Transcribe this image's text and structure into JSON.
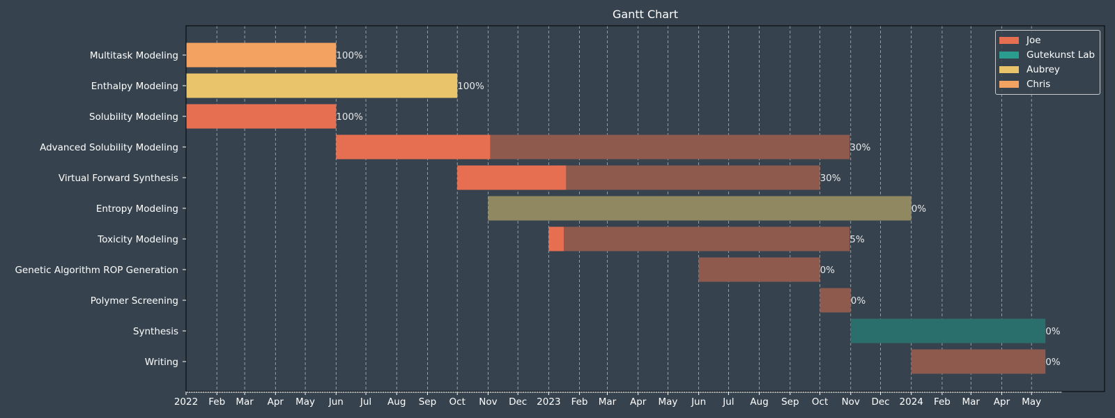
{
  "chart_data": {
    "type": "gantt",
    "title": "Gantt Chart",
    "x_start": "2022-01-01",
    "x_end": "2024-05-31",
    "grid": "vertical dashed",
    "legend_position": "top-right",
    "x_tick_labels": [
      "2022",
      "Feb",
      "Mar",
      "Apr",
      "May",
      "Jun",
      "Jul",
      "Aug",
      "Sep",
      "Oct",
      "Nov",
      "Dec",
      "2023",
      "Feb",
      "Mar",
      "Apr",
      "May",
      "Jun",
      "Jul",
      "Aug",
      "Sep",
      "Oct",
      "Nov",
      "Dec",
      "2024",
      "Feb",
      "Mar",
      "Apr",
      "May"
    ],
    "legend": [
      {
        "name": "Joe",
        "color": "#e76f51"
      },
      {
        "name": "Gutekunst Lab",
        "color": "#2a9d8f"
      },
      {
        "name": "Aubrey",
        "color": "#e9c46a"
      },
      {
        "name": "Chris",
        "color": "#f4a261"
      }
    ],
    "tasks": [
      {
        "name": "Multitask Modeling",
        "owner": "Chris",
        "start": "2022-01-01",
        "end": "2022-06-01",
        "completion": 1.0,
        "label": "100%"
      },
      {
        "name": "Enthalpy Modeling",
        "owner": "Aubrey",
        "start": "2022-01-01",
        "end": "2022-10-01",
        "completion": 1.0,
        "label": "100%"
      },
      {
        "name": "Solubility Modeling",
        "owner": "Joe",
        "start": "2022-01-01",
        "end": "2022-06-01",
        "completion": 1.0,
        "label": "100%"
      },
      {
        "name": "Advanced Solubility Modeling",
        "owner": "Joe",
        "start": "2022-06-01",
        "end": "2023-10-31",
        "completion": 0.3,
        "label": "30%"
      },
      {
        "name": "Virtual Forward Synthesis",
        "owner": "Joe",
        "start": "2022-10-01",
        "end": "2023-10-01",
        "completion": 0.3,
        "label": "30%"
      },
      {
        "name": "Entropy Modeling",
        "owner": "Aubrey",
        "start": "2022-11-01",
        "end": "2024-01-01",
        "completion": 0.0,
        "label": "0%"
      },
      {
        "name": "Toxicity Modeling",
        "owner": "Joe",
        "start": "2023-01-01",
        "end": "2023-10-31",
        "completion": 0.05,
        "label": "5%"
      },
      {
        "name": "Genetic Algorithm ROP Generation",
        "owner": "Joe",
        "start": "2023-06-01",
        "end": "2023-10-01",
        "completion": 0.0,
        "label": "0%"
      },
      {
        "name": "Polymer Screening",
        "owner": "Joe",
        "start": "2023-10-01",
        "end": "2023-11-01",
        "completion": 0.0,
        "label": "0%"
      },
      {
        "name": "Synthesis",
        "owner": "Gutekunst Lab",
        "start": "2023-11-01",
        "end": "2024-05-15",
        "completion": 0.0,
        "label": "0%"
      },
      {
        "name": "Writing",
        "owner": "Joe",
        "start": "2024-01-01",
        "end": "2024-05-15",
        "completion": 0.0,
        "label": "0%"
      }
    ]
  }
}
